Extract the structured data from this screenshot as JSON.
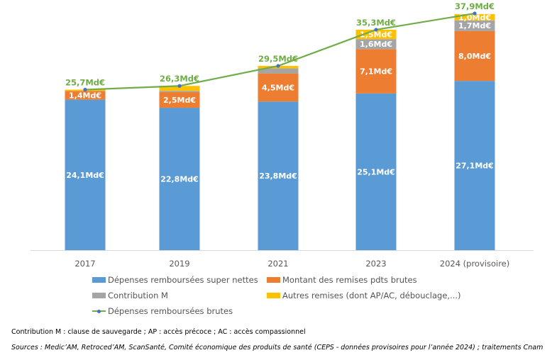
{
  "chart_data": {
    "type": "bar",
    "stacked": true,
    "title": "",
    "xlabel": "",
    "ylabel": "",
    "ylim": [
      0,
      38.5
    ],
    "grid": false,
    "unit_suffix": "Md€",
    "categories": [
      "2017",
      "2019",
      "2021",
      "2023",
      "2024 (provisoire)"
    ],
    "series": [
      {
        "name": "Dépenses remboursées super nettes",
        "kind": "bar",
        "color": "#5b9bd5",
        "values": [
          24.1,
          22.8,
          23.8,
          25.1,
          27.1
        ],
        "labels": [
          "24,1Md€",
          "22,8Md€",
          "23,8Md€",
          "25,1Md€",
          "27,1Md€"
        ],
        "label_color": "#ffffff"
      },
      {
        "name": "Montant des remises pdts brutes",
        "kind": "bar",
        "color": "#ed7d31",
        "values": [
          1.4,
          2.5,
          4.5,
          7.1,
          8.0
        ],
        "labels": [
          "1,4Md€",
          "2,5Md€",
          "4,5Md€",
          "7,1Md€",
          "8,0Md€"
        ],
        "label_color": "#ffffff"
      },
      {
        "name": "Contribution M",
        "kind": "bar",
        "color": "#a5a5a5",
        "values": [
          0.0,
          0.2,
          0.8,
          1.6,
          1.7
        ],
        "labels": [
          "",
          "",
          "",
          "1,6Md€",
          "1,7Md€"
        ],
        "label_color": "#ffffff"
      },
      {
        "name": "Autres remises (dont AP/AC, débouclage,...)",
        "kind": "bar",
        "color": "#ffc000",
        "values": [
          0.2,
          0.8,
          0.4,
          1.5,
          1.0
        ],
        "labels": [
          "",
          "",
          "",
          "1,5Md€",
          "1,0Md€"
        ],
        "label_color": "#ffffff"
      },
      {
        "name": "Dépenses remboursées brutes",
        "kind": "line",
        "color": "#70ad47",
        "marker_color": "#4472c4",
        "values": [
          25.7,
          26.3,
          29.5,
          35.3,
          37.9
        ],
        "labels": [
          "25,7Md€",
          "26,3Md€",
          "29,5Md€",
          "35,3Md€",
          "37,9Md€"
        ],
        "label_color": "#70ad47"
      }
    ],
    "legend_position": "bottom"
  },
  "legend": {
    "items": [
      {
        "label": "Dépenses remboursées super nettes",
        "color": "#5b9bd5",
        "kind": "bar"
      },
      {
        "label": "Montant des remises pdts brutes",
        "color": "#ed7d31",
        "kind": "bar"
      },
      {
        "label": "Contribution M",
        "color": "#a5a5a5",
        "kind": "bar"
      },
      {
        "label": "Autres remises (dont AP/AC, débouclage,...)",
        "color": "#ffc000",
        "kind": "bar"
      },
      {
        "label": "Dépenses remboursées brutes",
        "color": "#70ad47",
        "kind": "line"
      }
    ]
  },
  "notes": {
    "abbreviations": "Contribution M : clause de sauvegarde ; AP : accès précoce ; AC : accès compassionnel",
    "sources": "Sources : Medic’AM, Retroced’AM, ScanSanté, Comité économique des produits de santé (CEPS - données provisoires pour l’année 2024) ; traitements Cnam"
  }
}
